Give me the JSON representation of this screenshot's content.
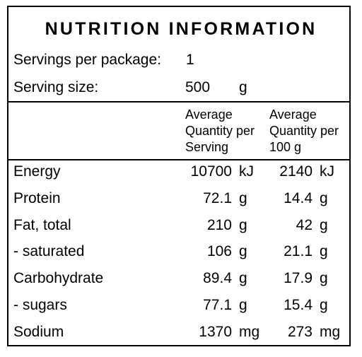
{
  "title": "NUTRITION INFORMATION",
  "servings_per_package": {
    "label": "Servings per package:",
    "value": "1"
  },
  "serving_size": {
    "label": "Serving size:",
    "value": "500",
    "unit": "g"
  },
  "columns": {
    "per_serving": "Average\nQuantity per\nServing",
    "per_100g": "Average\nQuantity per\n100 g"
  },
  "rows": [
    {
      "name": "Energy",
      "serving": "10700",
      "serving_unit": "kJ",
      "per100": "2140",
      "per100_unit": "kJ"
    },
    {
      "name": "Protein",
      "serving": "72.1",
      "serving_unit": "g",
      "per100": "14.4",
      "per100_unit": "g"
    },
    {
      "name": "Fat, total",
      "serving": "210",
      "serving_unit": "g",
      "per100": "42",
      "per100_unit": "g"
    },
    {
      "name": "- saturated",
      "serving": "106",
      "serving_unit": "g",
      "per100": "21.1",
      "per100_unit": "g"
    },
    {
      "name": "Carbohydrate",
      "serving": "89.4",
      "serving_unit": "g",
      "per100": "17.9",
      "per100_unit": "g"
    },
    {
      "name": "- sugars",
      "serving": "77.1",
      "serving_unit": "g",
      "per100": "15.4",
      "per100_unit": "g"
    },
    {
      "name": "Sodium",
      "serving": "1370",
      "serving_unit": "mg",
      "per100": "273",
      "per100_unit": "mg"
    }
  ]
}
